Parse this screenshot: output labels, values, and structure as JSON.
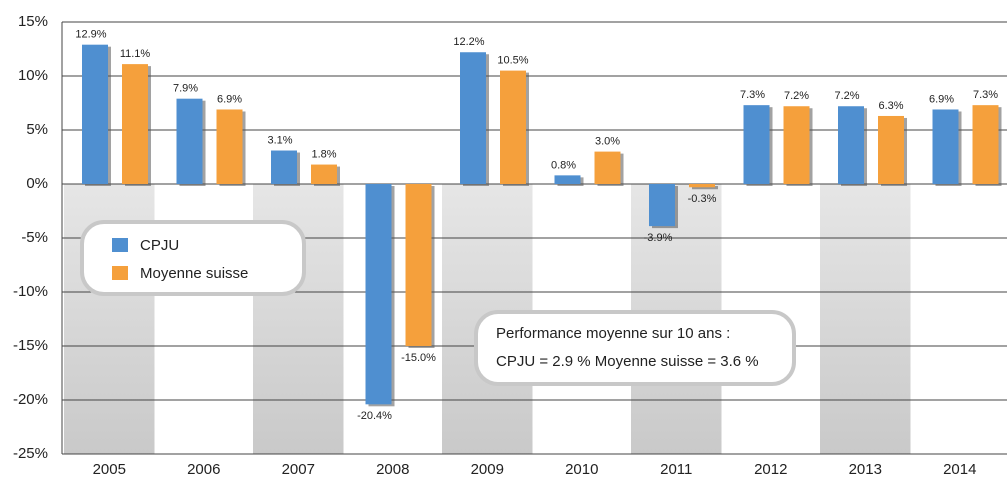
{
  "chart_data": {
    "type": "bar",
    "categories": [
      "2005",
      "2006",
      "2007",
      "2008",
      "2009",
      "2010",
      "2011",
      "2012",
      "2013",
      "2014"
    ],
    "series": [
      {
        "name": "CPJU",
        "color": "#4f8fd0",
        "values": [
          12.9,
          7.9,
          3.1,
          -20.4,
          12.2,
          0.8,
          -3.9,
          7.3,
          7.2,
          6.9
        ],
        "value_labels": [
          "12.9%",
          "7.9%",
          "3.1%",
          "-20.4%",
          "12.2%",
          "0.8%",
          "-3.9%",
          "7.3%",
          "7.2%",
          "6.9%"
        ]
      },
      {
        "name": "Moyenne suisse",
        "color": "#f5a03c",
        "values": [
          11.1,
          6.9,
          1.8,
          -15.0,
          10.5,
          3.0,
          -0.3,
          7.2,
          6.3,
          7.3
        ],
        "value_labels": [
          "11.1%",
          "6.9%",
          "1.8%",
          "-15.0%",
          "10.5%",
          "3.0%",
          "-0.3%",
          "7.2%",
          "6.3%",
          "7.3%"
        ]
      }
    ],
    "ylim": [
      -25,
      15
    ],
    "yticks": [
      {
        "value": 15,
        "label": "15%"
      },
      {
        "value": 10,
        "label": "10%"
      },
      {
        "value": 5,
        "label": "5%"
      },
      {
        "value": 0,
        "label": "0%"
      },
      {
        "value": -5,
        "label": "-5%"
      },
      {
        "value": -10,
        "label": "-10%"
      },
      {
        "value": -15,
        "label": "-15%"
      },
      {
        "value": -20,
        "label": "-20%"
      },
      {
        "value": -25,
        "label": "-25%"
      }
    ],
    "grid": true,
    "annotation": [
      "Performance moyenne sur 10 ans :",
      "CPJU = 2.9 % Moyenne suisse = 3.6 %"
    ]
  }
}
